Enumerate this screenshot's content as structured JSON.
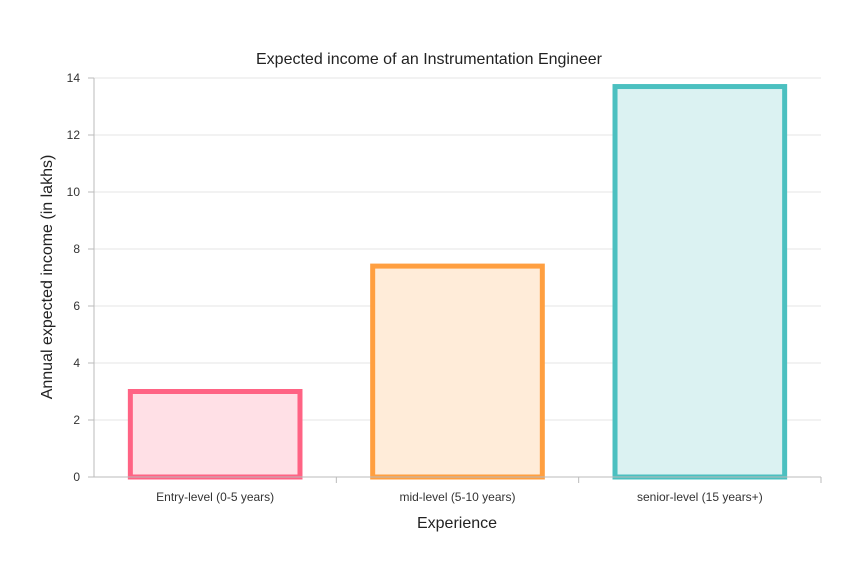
{
  "chart_data": {
    "type": "bar",
    "title": "Expected income of an Instrumentation Engineer",
    "xlabel": "Experience",
    "ylabel": "Annual expected income (in lakhs)",
    "categories": [
      "Entry-level (0-5 years)",
      "mid-level (5-10 years)",
      "senior-level (15 years+)"
    ],
    "values": [
      3,
      7.4,
      13.7
    ],
    "ylim": [
      0,
      14
    ],
    "yticks": [
      0,
      2,
      4,
      6,
      8,
      10,
      12,
      14
    ],
    "grid": true,
    "legend": "none",
    "colors": {
      "stroke": [
        "#ff6384",
        "#ff9f40",
        "#4bc0c0"
      ],
      "fill": [
        "#ffe0e6",
        "#ffecd9",
        "#dbf2f2"
      ]
    }
  }
}
